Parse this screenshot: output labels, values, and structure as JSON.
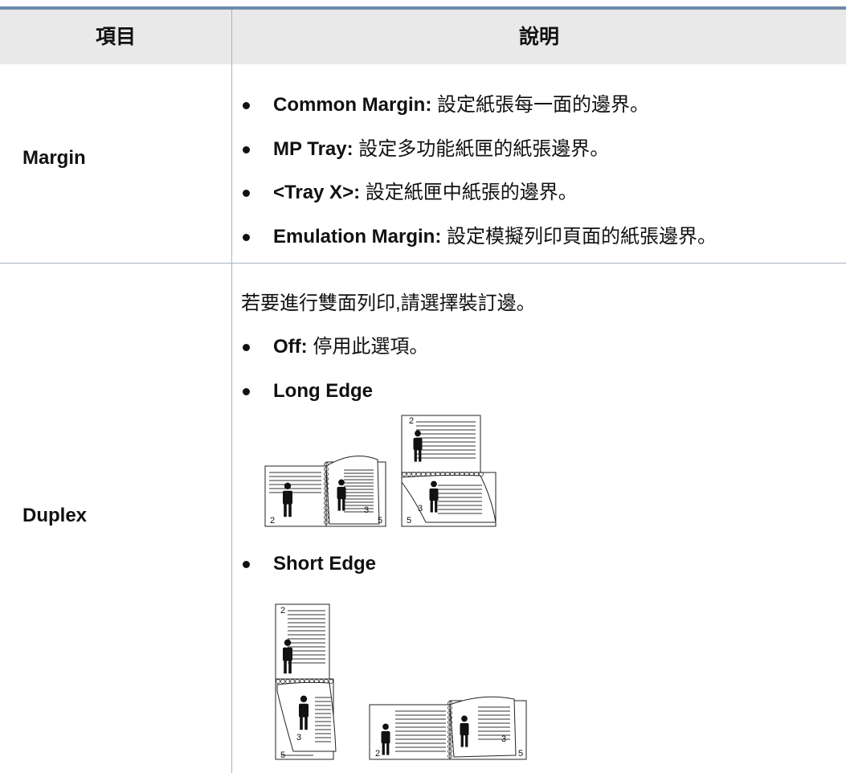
{
  "table": {
    "header": [
      "項目",
      "說明"
    ],
    "rows": [
      {
        "item": "Margin",
        "bullets": [
          {
            "term": "Common Margin:",
            "text": "設定紙張每一面的邊界。"
          },
          {
            "term": "MP Tray:",
            "text": "設定多功能紙匣的紙張邊界。"
          },
          {
            "term": "<Tray X>:",
            "text": "設定紙匣中紙張的邊界。"
          },
          {
            "term": "Emulation Margin:",
            "text": "設定模擬列印頁面的紙張邊界。"
          }
        ]
      },
      {
        "item": "Duplex",
        "intro": "若要進行雙面列印,請選擇裝訂邊。",
        "bullets": [
          {
            "term": "Off:",
            "text": "停用此選項。"
          },
          {
            "term": "Long Edge",
            "figure_labels": [
              "2",
              "3",
              "5",
              "2",
              "3",
              "5"
            ]
          },
          {
            "term": "Short Edge",
            "figure_labels": [
              "2",
              "3",
              "5",
              "2",
              "3",
              "5"
            ]
          }
        ]
      }
    ]
  }
}
